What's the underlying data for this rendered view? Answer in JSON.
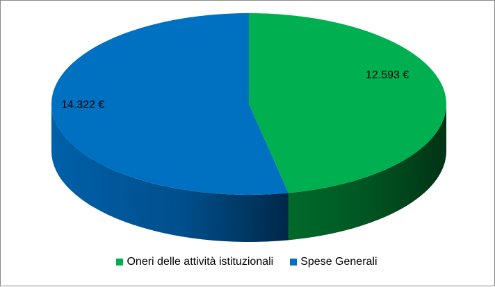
{
  "chart_data": {
    "type": "pie",
    "categories": [
      "Oneri delle attività istituzionali",
      "Spese Generali"
    ],
    "values": [
      12593,
      14322
    ],
    "value_labels": [
      "12.593 €",
      "14.322 €"
    ],
    "colors": [
      "#00B050",
      "#0070C0"
    ],
    "legend_position": "bottom",
    "style": "3d-pie"
  }
}
